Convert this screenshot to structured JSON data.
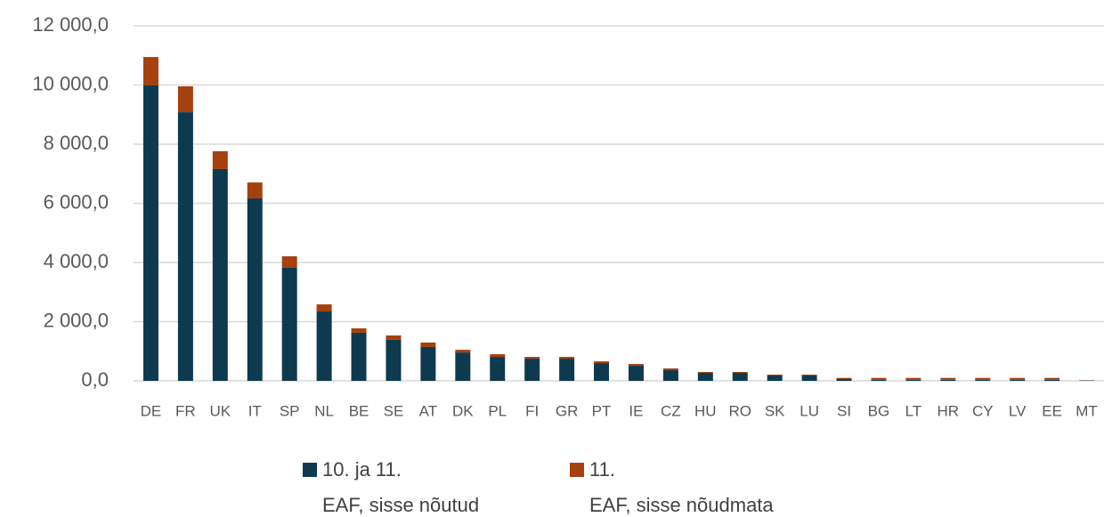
{
  "chart_data": {
    "type": "stacked_bar",
    "categories": [
      "DE",
      "FR",
      "UK",
      "IT",
      "SP",
      "NL",
      "BE",
      "SE",
      "AT",
      "DK",
      "PL",
      "FI",
      "GR",
      "PT",
      "IE",
      "CZ",
      "HU",
      "RO",
      "SK",
      "LU",
      "SI",
      "BG",
      "LT",
      "HR",
      "CY",
      "LV",
      "EE",
      "MT"
    ],
    "series": [
      {
        "name": "10. ja 11.\nEAF, sisse nõutud",
        "color": "#0e3a50",
        "values": [
          9985,
          9080,
          7160,
          6165,
          3820,
          2345,
          1625,
          1385,
          1145,
          960,
          810,
          750,
          750,
          600,
          510,
          360,
          270,
          270,
          180,
          180,
          60,
          40,
          40,
          40,
          40,
          40,
          40,
          10
        ]
      },
      {
        "name": "11.\nEAF, sisse nõudmata",
        "color": "#a5410e",
        "values": [
          960,
          875,
          600,
          540,
          390,
          240,
          150,
          150,
          150,
          90,
          90,
          60,
          60,
          60,
          60,
          60,
          30,
          30,
          30,
          30,
          40,
          60,
          60,
          60,
          60,
          60,
          60,
          10
        ]
      }
    ],
    "ylim": [
      0,
      12000
    ],
    "yticks": [
      {
        "value": 0,
        "label": "0,0"
      },
      {
        "value": 2000,
        "label": "2 000,0"
      },
      {
        "value": 4000,
        "label": "4 000,0"
      },
      {
        "value": 6000,
        "label": "6 000,0"
      },
      {
        "value": 8000,
        "label": "8 000,0"
      },
      {
        "value": 10000,
        "label": "10 000,0"
      },
      {
        "value": 12000,
        "label": "12 000,0"
      }
    ],
    "grid": true
  }
}
